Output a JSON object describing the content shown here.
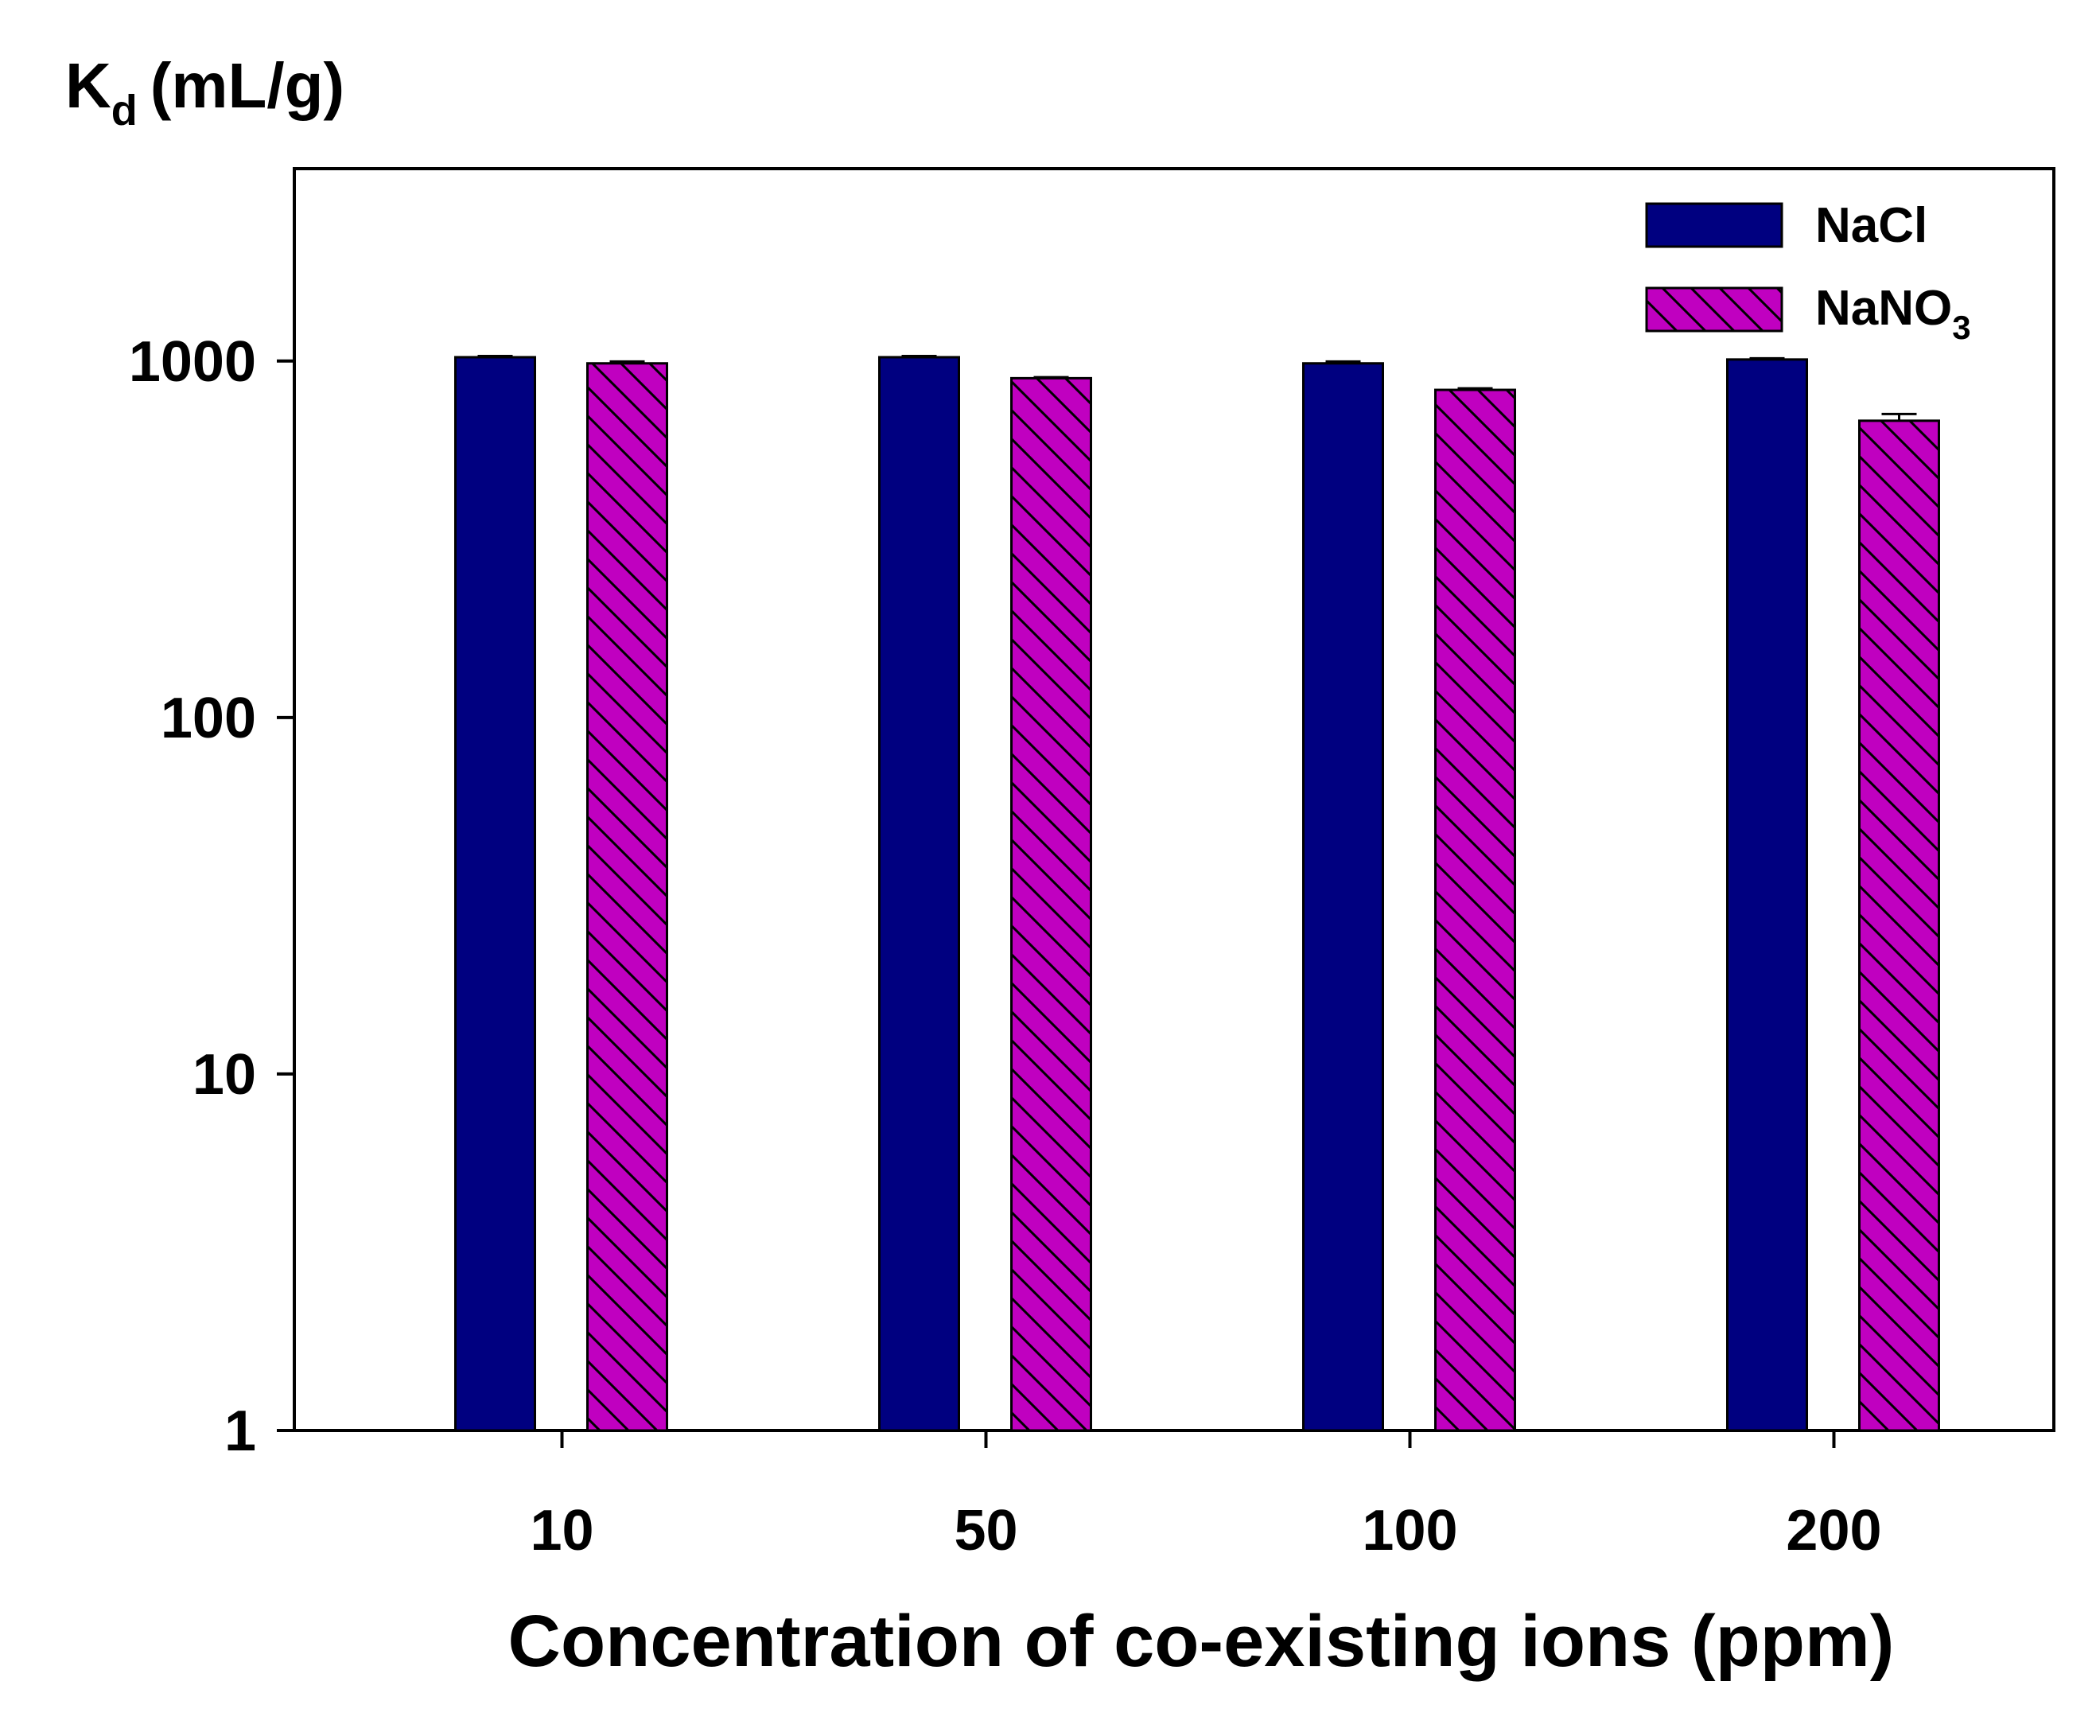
{
  "chart_data": {
    "type": "bar",
    "title": "",
    "ylabel": {
      "main": "K",
      "subscript": "d",
      "unit": "(mL/g)"
    },
    "xlabel": "Concentration of co-existing ions (ppm)",
    "yscale": "log",
    "ylim": [
      1,
      3000
    ],
    "yticks": [
      {
        "value": 1,
        "label": "1"
      },
      {
        "value": 10,
        "label": "10"
      },
      {
        "value": 100,
        "label": "100"
      },
      {
        "value": 1000,
        "label": "1000"
      }
    ],
    "categories": [
      "10",
      "50",
      "100",
      "200"
    ],
    "series": [
      {
        "name": "NaCl",
        "name_main": "NaCl",
        "name_sub": "",
        "color": "#000080",
        "pattern": "solid",
        "values": [
          1025,
          1025,
          985,
          1010
        ],
        "errors": [
          8,
          8,
          12,
          8
        ]
      },
      {
        "name": "NaNO3",
        "name_main": "NaNO",
        "name_sub": "3",
        "color": "#C000C0",
        "pattern": "hatched",
        "values": [
          985,
          895,
          830,
          680
        ],
        "errors": [
          12,
          6,
          8,
          30
        ]
      }
    ],
    "legend_position": "top-right",
    "grid": false
  }
}
